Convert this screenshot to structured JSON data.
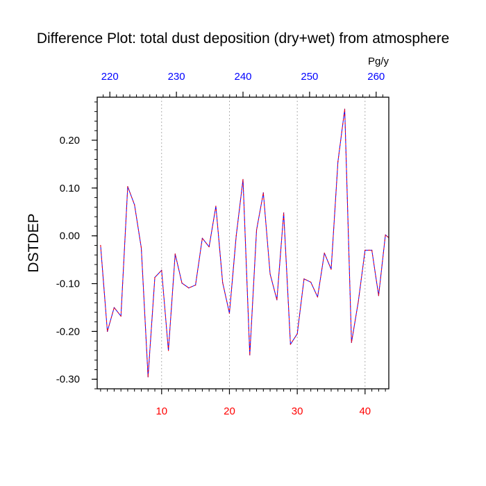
{
  "chart_data": {
    "type": "line",
    "title": "Difference Plot: total dust deposition (dry+wet) from atmosphere",
    "ylabel": "DSTDEP",
    "units": "Pg/y",
    "xlim": [
      0.5,
      43.5
    ],
    "ylim": [
      -0.32,
      0.29
    ],
    "top_xlim": [
      218.1,
      261.9
    ],
    "y_ticks": [
      {
        "value": 0.2,
        "label": "0.20"
      },
      {
        "value": 0.1,
        "label": "0.10"
      },
      {
        "value": 0.0,
        "label": "0.00"
      },
      {
        "value": -0.1,
        "label": "-0.10"
      },
      {
        "value": -0.2,
        "label": "-0.20"
      },
      {
        "value": -0.3,
        "label": "-0.30"
      }
    ],
    "y_minor_step": 0.02,
    "x_ticks_bottom": [
      {
        "value": 10,
        "label": "10"
      },
      {
        "value": 20,
        "label": "20"
      },
      {
        "value": 30,
        "label": "30"
      },
      {
        "value": 40,
        "label": "40"
      }
    ],
    "x_ticks_top": [
      {
        "value": 220,
        "label": "220"
      },
      {
        "value": 230,
        "label": "230"
      },
      {
        "value": 240,
        "label": "240"
      },
      {
        "value": 250,
        "label": "250"
      },
      {
        "value": 260,
        "label": "260"
      }
    ],
    "grid": "dotted vertical lines at bottom-axis major ticks",
    "series": [
      {
        "color": "#0000ff",
        "x": [
          1,
          2,
          3,
          4,
          5,
          6,
          7,
          8,
          9,
          10,
          11,
          12,
          13,
          14,
          15,
          16,
          17,
          18,
          19,
          20,
          21,
          22,
          23,
          24,
          25,
          26,
          27,
          28,
          29,
          30,
          31,
          32,
          33,
          34,
          35,
          36,
          37,
          38,
          39,
          40,
          41,
          42,
          43,
          44
        ],
        "values": [
          -0.02,
          -0.2,
          -0.15,
          -0.168,
          0.103,
          0.065,
          -0.025,
          -0.295,
          -0.087,
          -0.072,
          -0.24,
          -0.038,
          -0.099,
          -0.109,
          -0.103,
          -0.005,
          -0.023,
          0.062,
          -0.098,
          -0.162,
          0.0,
          0.118,
          -0.249,
          0.012,
          0.09,
          -0.08,
          -0.134,
          0.048,
          -0.227,
          -0.205,
          -0.09,
          -0.097,
          -0.128,
          -0.036,
          -0.07,
          0.155,
          0.265,
          -0.223,
          -0.138,
          -0.03,
          -0.03,
          -0.125,
          0.002,
          -0.01
        ]
      },
      {
        "color": "#ff0000",
        "style": "dashed",
        "x": [
          1,
          2,
          3,
          4,
          5,
          6,
          7,
          8,
          9,
          10,
          11,
          12,
          13,
          14,
          15,
          16,
          17,
          18,
          19,
          20,
          21,
          22,
          23,
          24,
          25,
          26,
          27,
          28,
          29,
          30,
          31,
          32,
          33,
          34,
          35,
          36,
          37,
          38,
          39,
          40,
          41,
          42,
          43,
          44
        ],
        "values": [
          -0.02,
          -0.2,
          -0.15,
          -0.168,
          0.103,
          0.065,
          -0.025,
          -0.295,
          -0.087,
          -0.072,
          -0.24,
          -0.038,
          -0.099,
          -0.109,
          -0.103,
          -0.005,
          -0.023,
          0.062,
          -0.098,
          -0.162,
          0.0,
          0.118,
          -0.249,
          0.012,
          0.09,
          -0.08,
          -0.134,
          0.048,
          -0.227,
          -0.205,
          -0.09,
          -0.097,
          -0.128,
          -0.036,
          -0.07,
          0.155,
          0.265,
          -0.223,
          -0.138,
          -0.03,
          -0.03,
          -0.125,
          0.002,
          -0.01
        ]
      }
    ]
  }
}
